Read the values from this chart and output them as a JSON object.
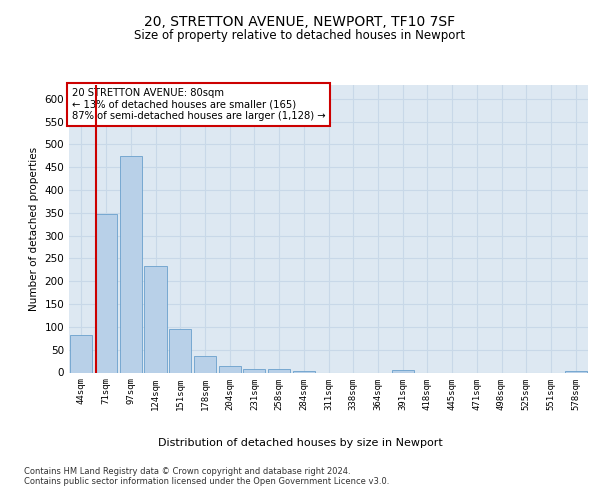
{
  "title1": "20, STRETTON AVENUE, NEWPORT, TF10 7SF",
  "title2": "Size of property relative to detached houses in Newport",
  "xlabel": "Distribution of detached houses by size in Newport",
  "ylabel": "Number of detached properties",
  "categories": [
    "44sqm",
    "71sqm",
    "97sqm",
    "124sqm",
    "151sqm",
    "178sqm",
    "204sqm",
    "231sqm",
    "258sqm",
    "284sqm",
    "311sqm",
    "338sqm",
    "364sqm",
    "391sqm",
    "418sqm",
    "445sqm",
    "471sqm",
    "498sqm",
    "525sqm",
    "551sqm",
    "578sqm"
  ],
  "values": [
    82,
    348,
    475,
    234,
    96,
    36,
    15,
    8,
    8,
    4,
    0,
    0,
    0,
    5,
    0,
    0,
    0,
    0,
    0,
    0,
    4
  ],
  "bar_color": "#b8d0e8",
  "bar_edge_color": "#6aa0cc",
  "grid_color": "#c8d8e8",
  "background_color": "#dde8f2",
  "vline_color": "#cc0000",
  "annotation_text": "20 STRETTON AVENUE: 80sqm\n← 13% of detached houses are smaller (165)\n87% of semi-detached houses are larger (1,128) →",
  "annotation_box_color": "#ffffff",
  "annotation_box_edge": "#cc0000",
  "ylim": [
    0,
    630
  ],
  "yticks": [
    0,
    50,
    100,
    150,
    200,
    250,
    300,
    350,
    400,
    450,
    500,
    550,
    600
  ],
  "footer1": "Contains HM Land Registry data © Crown copyright and database right 2024.",
  "footer2": "Contains public sector information licensed under the Open Government Licence v3.0."
}
